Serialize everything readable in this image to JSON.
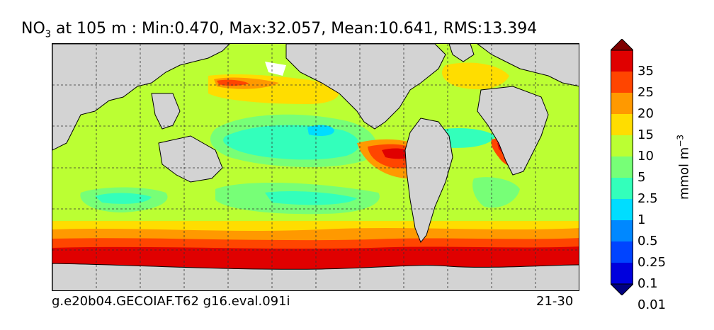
{
  "title": {
    "variable": "NO",
    "subscript": "3",
    "rest": " at 105 m : Min:0.470, Max:32.057, Mean:10.641, RMS:13.394"
  },
  "footer": {
    "case": "g.e20b04.GECOIAF.T62 g16.eval.091i",
    "years": "21-30"
  },
  "colorbar": {
    "unit": "mmol m",
    "unit_sup": "−3",
    "labels": [
      "35",
      "25",
      "20",
      "15",
      "10",
      "5",
      "2.5",
      "1",
      "0.5",
      "0.25",
      "0.1",
      "0.01"
    ],
    "colors_top_to_bottom": [
      "#7f0000",
      "#e00000",
      "#ff4500",
      "#ff9900",
      "#ffdd00",
      "#bbff33",
      "#77ff77",
      "#33ffbb",
      "#00ddff",
      "#0088ff",
      "#0044ff",
      "#0000dd",
      "#000080"
    ],
    "extend_top_color": "#7f0000",
    "extend_bottom_color": "#000080"
  },
  "map": {
    "land_color": "#d3d3d3",
    "graticule": "dashed",
    "projection": "global lat-lon, Pacific-centered"
  }
}
